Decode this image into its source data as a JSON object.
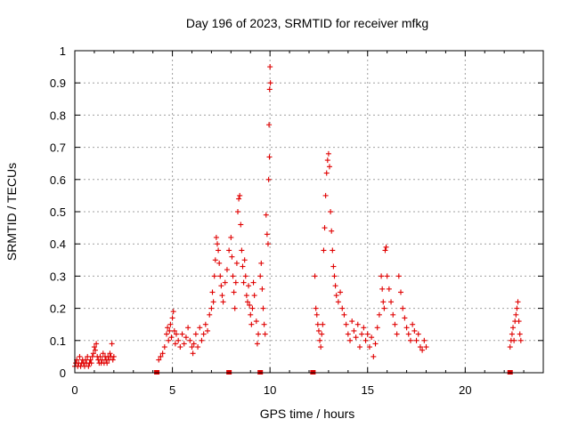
{
  "chart_data": {
    "type": "scatter",
    "title": "Day 196 of 2023, SRMTID for receiver mfkg",
    "xlabel": "GPS time / hours",
    "ylabel": "SRMTID / TECUs",
    "xlim": [
      0,
      24
    ],
    "ylim": [
      0,
      1
    ],
    "xticks": [
      0,
      5,
      10,
      15,
      20
    ],
    "xtick_labels": [
      "0",
      "5",
      "10",
      "15",
      "20"
    ],
    "yticks": [
      0,
      0.1,
      0.2,
      0.3,
      0.4,
      0.5,
      0.6,
      0.7,
      0.8,
      0.9,
      1
    ],
    "ytick_labels": [
      "0",
      "0.1",
      "0.2",
      "0.3",
      "0.4",
      "0.5",
      "0.6",
      "0.7",
      "0.8",
      "0.9",
      "1"
    ],
    "grid": true,
    "marker": "+",
    "color": "#e00000",
    "series": [
      {
        "name": "SRMTID",
        "points": [
          [
            0.0,
            0.02
          ],
          [
            0.05,
            0.03
          ],
          [
            0.1,
            0.04
          ],
          [
            0.15,
            0.02
          ],
          [
            0.2,
            0.03
          ],
          [
            0.25,
            0.05
          ],
          [
            0.3,
            0.02
          ],
          [
            0.35,
            0.03
          ],
          [
            0.4,
            0.04
          ],
          [
            0.45,
            0.03
          ],
          [
            0.5,
            0.02
          ],
          [
            0.55,
            0.04
          ],
          [
            0.6,
            0.03
          ],
          [
            0.65,
            0.05
          ],
          [
            0.7,
            0.02
          ],
          [
            0.75,
            0.03
          ],
          [
            0.8,
            0.04
          ],
          [
            0.85,
            0.03
          ],
          [
            0.9,
            0.05
          ],
          [
            0.95,
            0.06
          ],
          [
            1.0,
            0.08
          ],
          [
            1.05,
            0.07
          ],
          [
            1.1,
            0.09
          ],
          [
            1.15,
            0.05
          ],
          [
            1.2,
            0.04
          ],
          [
            1.25,
            0.03
          ],
          [
            1.3,
            0.05
          ],
          [
            1.35,
            0.03
          ],
          [
            1.4,
            0.04
          ],
          [
            1.45,
            0.06
          ],
          [
            1.5,
            0.03
          ],
          [
            1.55,
            0.05
          ],
          [
            1.6,
            0.04
          ],
          [
            1.65,
            0.03
          ],
          [
            1.7,
            0.05
          ],
          [
            1.75,
            0.04
          ],
          [
            1.8,
            0.06
          ],
          [
            1.85,
            0.05
          ],
          [
            1.9,
            0.09
          ],
          [
            1.95,
            0.04
          ],
          [
            2.0,
            0.05
          ],
          [
            4.3,
            0.04
          ],
          [
            4.4,
            0.05
          ],
          [
            4.5,
            0.06
          ],
          [
            4.6,
            0.08
          ],
          [
            4.7,
            0.12
          ],
          [
            4.75,
            0.14
          ],
          [
            4.8,
            0.1
          ],
          [
            4.85,
            0.13
          ],
          [
            4.9,
            0.15
          ],
          [
            4.95,
            0.11
          ],
          [
            5.0,
            0.17
          ],
          [
            5.05,
            0.19
          ],
          [
            5.1,
            0.13
          ],
          [
            5.15,
            0.09
          ],
          [
            5.2,
            0.12
          ],
          [
            5.3,
            0.1
          ],
          [
            5.4,
            0.08
          ],
          [
            5.5,
            0.12
          ],
          [
            5.6,
            0.09
          ],
          [
            5.7,
            0.11
          ],
          [
            5.8,
            0.14
          ],
          [
            5.9,
            0.1
          ],
          [
            6.0,
            0.08
          ],
          [
            6.05,
            0.06
          ],
          [
            6.1,
            0.09
          ],
          [
            6.2,
            0.12
          ],
          [
            6.3,
            0.08
          ],
          [
            6.4,
            0.14
          ],
          [
            6.5,
            0.1
          ],
          [
            6.6,
            0.12
          ],
          [
            6.7,
            0.15
          ],
          [
            6.8,
            0.13
          ],
          [
            6.9,
            0.18
          ],
          [
            7.0,
            0.2
          ],
          [
            7.05,
            0.25
          ],
          [
            7.1,
            0.22
          ],
          [
            7.15,
            0.3
          ],
          [
            7.2,
            0.35
          ],
          [
            7.25,
            0.42
          ],
          [
            7.3,
            0.4
          ],
          [
            7.35,
            0.38
          ],
          [
            7.4,
            0.34
          ],
          [
            7.45,
            0.3
          ],
          [
            7.5,
            0.27
          ],
          [
            7.55,
            0.24
          ],
          [
            7.6,
            0.22
          ],
          [
            7.7,
            0.28
          ],
          [
            7.8,
            0.32
          ],
          [
            7.9,
            0.38
          ],
          [
            8.0,
            0.42
          ],
          [
            8.05,
            0.36
          ],
          [
            8.1,
            0.3
          ],
          [
            8.15,
            0.25
          ],
          [
            8.2,
            0.2
          ],
          [
            8.25,
            0.28
          ],
          [
            8.3,
            0.34
          ],
          [
            8.35,
            0.5
          ],
          [
            8.4,
            0.54
          ],
          [
            8.45,
            0.55
          ],
          [
            8.5,
            0.46
          ],
          [
            8.55,
            0.38
          ],
          [
            8.6,
            0.33
          ],
          [
            8.65,
            0.28
          ],
          [
            8.7,
            0.35
          ],
          [
            8.75,
            0.3
          ],
          [
            8.8,
            0.24
          ],
          [
            8.85,
            0.22
          ],
          [
            8.9,
            0.27
          ],
          [
            8.95,
            0.21
          ],
          [
            9.0,
            0.18
          ],
          [
            9.05,
            0.15
          ],
          [
            9.1,
            0.2
          ],
          [
            9.15,
            0.28
          ],
          [
            9.2,
            0.24
          ],
          [
            9.3,
            0.16
          ],
          [
            9.35,
            0.09
          ],
          [
            9.4,
            0.12
          ],
          [
            9.5,
            0.3
          ],
          [
            9.55,
            0.34
          ],
          [
            9.6,
            0.26
          ],
          [
            9.65,
            0.2
          ],
          [
            9.7,
            0.15
          ],
          [
            9.75,
            0.12
          ],
          [
            9.8,
            0.49
          ],
          [
            9.85,
            0.43
          ],
          [
            9.9,
            0.4
          ],
          [
            9.93,
            0.6
          ],
          [
            9.95,
            0.77
          ],
          [
            9.97,
            0.67
          ],
          [
            9.98,
            0.88
          ],
          [
            10.0,
            0.95
          ],
          [
            10.02,
            0.9
          ],
          [
            12.3,
            0.3
          ],
          [
            12.35,
            0.2
          ],
          [
            12.4,
            0.18
          ],
          [
            12.45,
            0.15
          ],
          [
            12.5,
            0.13
          ],
          [
            12.55,
            0.1
          ],
          [
            12.6,
            0.08
          ],
          [
            12.65,
            0.12
          ],
          [
            12.7,
            0.15
          ],
          [
            12.75,
            0.38
          ],
          [
            12.8,
            0.45
          ],
          [
            12.85,
            0.55
          ],
          [
            12.9,
            0.62
          ],
          [
            12.95,
            0.66
          ],
          [
            13.0,
            0.68
          ],
          [
            13.05,
            0.64
          ],
          [
            13.1,
            0.5
          ],
          [
            13.15,
            0.44
          ],
          [
            13.2,
            0.38
          ],
          [
            13.25,
            0.33
          ],
          [
            13.3,
            0.3
          ],
          [
            13.35,
            0.27
          ],
          [
            13.4,
            0.24
          ],
          [
            13.5,
            0.22
          ],
          [
            13.6,
            0.25
          ],
          [
            13.7,
            0.2
          ],
          [
            13.8,
            0.18
          ],
          [
            13.9,
            0.15
          ],
          [
            14.0,
            0.12
          ],
          [
            14.1,
            0.1
          ],
          [
            14.2,
            0.16
          ],
          [
            14.3,
            0.13
          ],
          [
            14.4,
            0.11
          ],
          [
            14.5,
            0.15
          ],
          [
            14.6,
            0.08
          ],
          [
            14.7,
            0.12
          ],
          [
            14.8,
            0.14
          ],
          [
            14.9,
            0.1
          ],
          [
            15.0,
            0.12
          ],
          [
            15.1,
            0.08
          ],
          [
            15.2,
            0.11
          ],
          [
            15.3,
            0.05
          ],
          [
            15.4,
            0.09
          ],
          [
            15.5,
            0.14
          ],
          [
            15.6,
            0.18
          ],
          [
            15.7,
            0.3
          ],
          [
            15.75,
            0.26
          ],
          [
            15.8,
            0.22
          ],
          [
            15.85,
            0.2
          ],
          [
            15.9,
            0.38
          ],
          [
            15.95,
            0.39
          ],
          [
            16.0,
            0.3
          ],
          [
            16.1,
            0.26
          ],
          [
            16.2,
            0.22
          ],
          [
            16.3,
            0.18
          ],
          [
            16.4,
            0.15
          ],
          [
            16.5,
            0.12
          ],
          [
            16.6,
            0.3
          ],
          [
            16.7,
            0.25
          ],
          [
            16.8,
            0.2
          ],
          [
            16.9,
            0.17
          ],
          [
            17.0,
            0.14
          ],
          [
            17.1,
            0.12
          ],
          [
            17.2,
            0.1
          ],
          [
            17.3,
            0.15
          ],
          [
            17.4,
            0.13
          ],
          [
            17.5,
            0.1
          ],
          [
            17.6,
            0.12
          ],
          [
            17.7,
            0.08
          ],
          [
            17.8,
            0.07
          ],
          [
            17.9,
            0.1
          ],
          [
            18.0,
            0.08
          ],
          [
            22.3,
            0.08
          ],
          [
            22.35,
            0.1
          ],
          [
            22.4,
            0.12
          ],
          [
            22.45,
            0.14
          ],
          [
            22.5,
            0.1
          ],
          [
            22.55,
            0.16
          ],
          [
            22.6,
            0.18
          ],
          [
            22.65,
            0.2
          ],
          [
            22.7,
            0.22
          ],
          [
            22.75,
            0.16
          ],
          [
            22.8,
            0.12
          ],
          [
            22.85,
            0.1
          ]
        ]
      }
    ],
    "zero_markers": [
      4.2,
      7.9,
      9.5,
      12.2,
      22.3
    ]
  }
}
